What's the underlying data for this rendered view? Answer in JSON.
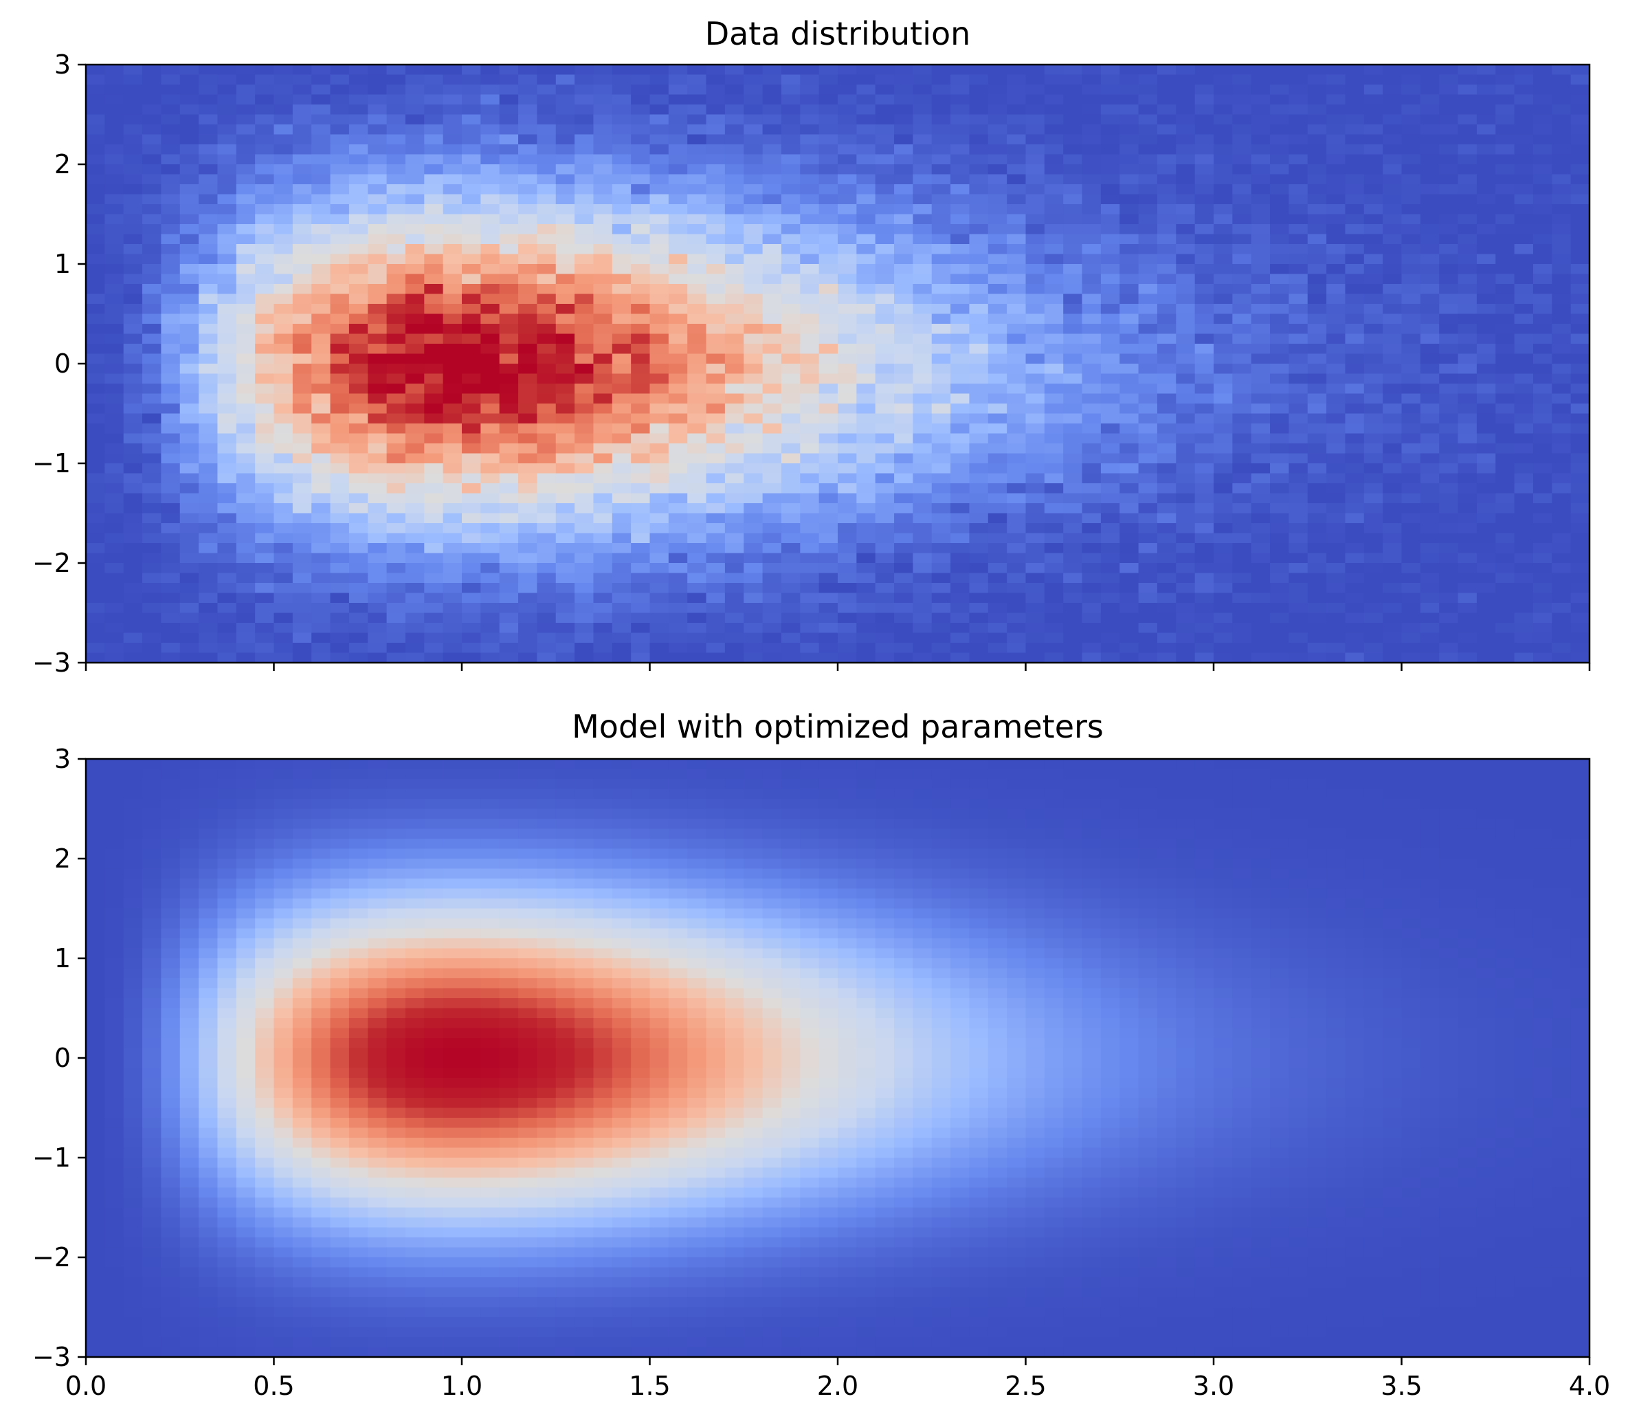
{
  "chart_data": [
    {
      "type": "heatmap",
      "title": "Data distribution",
      "xlabel": "",
      "ylabel": "",
      "xlim": [
        0,
        4
      ],
      "ylim": [
        -3,
        3
      ],
      "x_ticks": [
        "0.0",
        "0.5",
        "1.0",
        "1.5",
        "2.0",
        "2.5",
        "3.0",
        "3.5",
        "4.0"
      ],
      "x_tick_labels_visible": false,
      "y_ticks": [
        "3",
        "2",
        "1",
        "0",
        "−1",
        "−2",
        "−3"
      ],
      "grid": false,
      "colormap": "coolwarm",
      "colormap_stops": [
        "#3b4cc0",
        "#6788ee",
        "#9abbff",
        "#c9d7f0",
        "#dddcdc",
        "#f6bfa6",
        "#f49a7b",
        "#e26952",
        "#c0282f",
        "#b40426"
      ],
      "bins": {
        "x_count": 80,
        "y_count": 60
      },
      "density_shape": {
        "x_distribution": "gamma",
        "x_shape": 3.9,
        "x_mode": 1.0,
        "y_distribution": "normal",
        "y_mean": 0.0,
        "y_std": 1.0
      },
      "peak": {
        "x": 0.9,
        "y": 0.0
      },
      "noise": "sampled"
    },
    {
      "type": "heatmap",
      "title": "Model with optimized parameters",
      "xlabel": "",
      "ylabel": "",
      "xlim": [
        0,
        4
      ],
      "ylim": [
        -3,
        3
      ],
      "x_ticks": [
        "0.0",
        "0.5",
        "1.0",
        "1.5",
        "2.0",
        "2.5",
        "3.0",
        "3.5",
        "4.0"
      ],
      "x_tick_labels_visible": true,
      "y_ticks": [
        "3",
        "2",
        "1",
        "0",
        "−1",
        "−2",
        "−3"
      ],
      "grid": false,
      "colormap": "coolwarm",
      "colormap_stops": [
        "#3b4cc0",
        "#6788ee",
        "#9abbff",
        "#c9d7f0",
        "#dddcdc",
        "#f6bfa6",
        "#f49a7b",
        "#e26952",
        "#c0282f",
        "#b40426"
      ],
      "bins": {
        "x_count": 80,
        "y_count": 60
      },
      "density_shape": {
        "x_distribution": "gamma",
        "x_shape": 3.9,
        "x_mode": 1.0,
        "y_distribution": "normal",
        "y_mean": 0.0,
        "y_std": 1.0
      },
      "peak": {
        "x": 1.0,
        "y": 0.0
      },
      "noise": "none"
    }
  ]
}
